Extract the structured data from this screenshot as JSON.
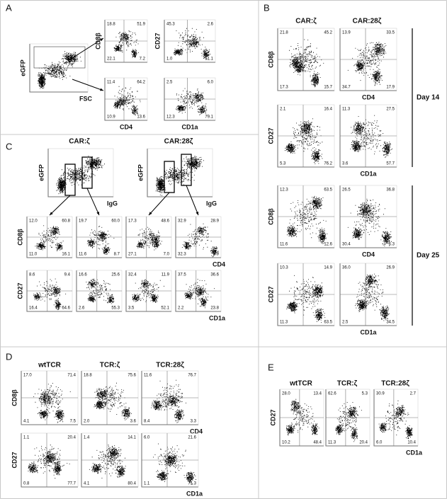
{
  "panels": {
    "A": {
      "label": "A",
      "gate": {
        "y_label": "eGFP",
        "x_label": "FSC"
      },
      "plots": [
        {
          "y_label": "CD8β",
          "quadrants": [
            "18.8",
            "51.9",
            "22.1",
            "7.2"
          ]
        },
        {
          "x_label": "CD4",
          "quadrants": [
            "11.4",
            "64.2",
            "10.9",
            "13.6"
          ]
        },
        {
          "y_label": "CD27",
          "quadrants": [
            "45.3",
            "2.6",
            "1.0",
            "51.1"
          ]
        },
        {
          "x_label": "CD1a",
          "quadrants": [
            "2.5",
            "6.0",
            "12.3",
            "79.1"
          ]
        }
      ]
    },
    "B": {
      "label": "B",
      "columns": [
        "CAR:ζ",
        "CAR:28ζ"
      ],
      "days": [
        "Day 14",
        "Day 25"
      ],
      "plots": [
        {
          "y_label": "CD8β",
          "quadrants": [
            "21.8",
            "45.2",
            "17.3",
            "15.7"
          ]
        },
        {
          "x_label": "CD4",
          "quadrants": [
            "13.9",
            "33.5",
            "34.7",
            "17.9"
          ]
        },
        {
          "y_label": "CD27",
          "quadrants": [
            "2.1",
            "16.4",
            "5.3",
            "76.2"
          ]
        },
        {
          "x_label": "CD1a",
          "quadrants": [
            "11.3",
            "27.5",
            "3.6",
            "57.7"
          ]
        },
        {
          "y_label": "CD8β",
          "quadrants": [
            "12.3",
            "63.5",
            "11.6",
            "12.6"
          ]
        },
        {
          "x_label": "CD4",
          "quadrants": [
            "26.5",
            "36.8",
            "30.4",
            "6.3"
          ]
        },
        {
          "y_label": "CD27",
          "quadrants": [
            "10.3",
            "14.9",
            "11.3",
            "63.5"
          ]
        },
        {
          "x_label": "CD1a",
          "quadrants": [
            "36.0",
            "26.9",
            "2.5",
            "34.5"
          ]
        }
      ]
    },
    "C": {
      "label": "C",
      "columns": [
        "CAR:ζ",
        "CAR:28ζ"
      ],
      "gates": [
        {
          "y_label": "eGFP",
          "x_label": "IgG"
        },
        {
          "y_label": "eGFP",
          "x_label": "IgG"
        }
      ],
      "plots": [
        {
          "y_label": "CD8β",
          "quadrants": [
            "12.0",
            "60.8",
            "11.0",
            "16.1"
          ]
        },
        {
          "quadrants": [
            "19.7",
            "60.0",
            "11.6",
            "8.7"
          ]
        },
        {
          "quadrants": [
            "17.3",
            "48.6",
            "27.1",
            "7.0"
          ]
        },
        {
          "x_label": "CD4",
          "quadrants": [
            "32.9",
            "28.9",
            "32.3",
            "5.9"
          ]
        },
        {
          "y_label": "CD27",
          "quadrants": [
            "8.6",
            "9.4",
            "16.4",
            "64.6"
          ]
        },
        {
          "quadrants": [
            "16.6",
            "25.6",
            "2.6",
            "55.3"
          ]
        },
        {
          "quadrants": [
            "32.4",
            "11.9",
            "3.5",
            "52.1"
          ]
        },
        {
          "x_label": "CD1a",
          "quadrants": [
            "37.5",
            "36.6",
            "2.2",
            "23.8"
          ]
        }
      ]
    },
    "D": {
      "label": "D",
      "columns": [
        "wtTCR",
        "TCR:ζ",
        "TCR:28ζ"
      ],
      "plots": [
        {
          "y_label": "CD8β",
          "quadrants": [
            "17.0",
            "71.4",
            "4.1",
            "7.5"
          ]
        },
        {
          "quadrants": [
            "18.8",
            "75.6",
            "2.0",
            "3.6"
          ]
        },
        {
          "x_label": "CD4",
          "quadrants": [
            "11.6",
            "76.7",
            "8.4",
            "3.3"
          ]
        },
        {
          "y_label": "CD27",
          "quadrants": [
            "1.1",
            "20.4",
            "0.8",
            "77.7"
          ]
        },
        {
          "quadrants": [
            "1.4",
            "14.1",
            "4.1",
            "80.4"
          ]
        },
        {
          "x_label": "CD1a",
          "quadrants": [
            "6.0",
            "21.6",
            "1.1",
            "71.3"
          ]
        }
      ]
    },
    "E": {
      "label": "E",
      "columns": [
        "wtTCR",
        "TCR:ζ",
        "TCR:28ζ"
      ],
      "plots": [
        {
          "y_label": "CD27",
          "quadrants": [
            "28.0",
            "13.4",
            "10.2",
            "48.4"
          ]
        },
        {
          "quadrants": [
            "62.6",
            "5.3",
            "11.3",
            "20.4"
          ]
        },
        {
          "x_label": "CD1a",
          "quadrants": [
            "30.9",
            "2.7",
            "6.0",
            "10.4"
          ]
        }
      ]
    }
  }
}
